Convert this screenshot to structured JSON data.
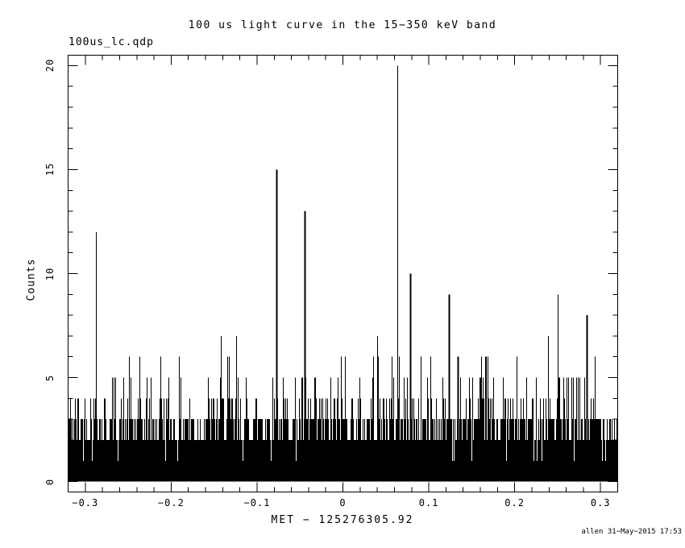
{
  "window": {
    "background": "#ffffff",
    "foreground": "#000000"
  },
  "file_label": "100us_lc.qdp",
  "timestamp": "allen 31−May−2015 17:53",
  "chart_data": {
    "type": "line",
    "title": "100 us light curve in the 15−350 keV band",
    "xlabel": "MET − 125276305.92",
    "ylabel": "Counts",
    "file_label": "100us_lc.qdp",
    "xlim": [
      -0.32,
      0.32
    ],
    "ylim": [
      -0.5,
      20.5
    ],
    "xticks": [
      -0.3,
      -0.2,
      -0.1,
      0,
      0.1,
      0.2,
      0.3
    ],
    "xtick_labels": [
      "−0.3",
      "−0.2",
      "−0.1",
      "0",
      "0.1",
      "0.2",
      "0.3"
    ],
    "yticks": [
      0,
      5,
      10,
      15,
      20
    ],
    "ytick_labels": [
      "0",
      "5",
      "10",
      "15",
      "20"
    ],
    "x_minor_tick_step": 0.02,
    "y_minor_tick_step": 1,
    "bin_size_s": 0.0001,
    "grid": false,
    "legend": false,
    "peaks": [
      {
        "x": -0.288,
        "counts": 12,
        "w": 1
      },
      {
        "x": -0.213,
        "counts": 6,
        "w": 1
      },
      {
        "x": -0.142,
        "counts": 7,
        "w": 1
      },
      {
        "x": -0.135,
        "counts": 6,
        "w": 1
      },
      {
        "x": -0.124,
        "counts": 7,
        "w": 1
      },
      {
        "x": -0.077,
        "counts": 15,
        "w": 2
      },
      {
        "x": -0.045,
        "counts": 13,
        "w": 2
      },
      {
        "x": -0.002,
        "counts": 6,
        "w": 1
      },
      {
        "x": 0.002,
        "counts": 6,
        "w": 1
      },
      {
        "x": 0.035,
        "counts": 6,
        "w": 1
      },
      {
        "x": 0.04,
        "counts": 7,
        "w": 1
      },
      {
        "x": 0.057,
        "counts": 6,
        "w": 1
      },
      {
        "x": 0.063,
        "counts": 20,
        "w": 1
      },
      {
        "x": 0.065,
        "counts": 6,
        "w": 1
      },
      {
        "x": 0.078,
        "counts": 10,
        "w": 2
      },
      {
        "x": 0.102,
        "counts": 6,
        "w": 1
      },
      {
        "x": 0.123,
        "counts": 9,
        "w": 2
      },
      {
        "x": 0.134,
        "counts": 6,
        "w": 2
      },
      {
        "x": 0.161,
        "counts": 6,
        "w": 1
      },
      {
        "x": 0.166,
        "counts": 6,
        "w": 1
      },
      {
        "x": 0.168,
        "counts": 6,
        "w": 1
      },
      {
        "x": 0.239,
        "counts": 7,
        "w": 1
      },
      {
        "x": 0.25,
        "counts": 9,
        "w": 1
      },
      {
        "x": 0.284,
        "counts": 8,
        "w": 2
      },
      {
        "x": 0.293,
        "counts": 6,
        "w": 1
      }
    ],
    "noise": {
      "seed": 42,
      "columns": 682,
      "column_max_weights": {
        "1": 0.03,
        "2": 0.34,
        "3": 0.36,
        "4": 0.17,
        "5": 0.09,
        "6": 0.01
      }
    },
    "description": "100-microsecond binned gamma-ray burst light curve, 15-350 keV. Dense Poisson baseline (0-5 counts) renders as a solid black band up to ~2-3 counts with a comb of 3-5 count bins; resolved spikes listed in peaks, maximum 20 counts near t=0.063 s."
  }
}
